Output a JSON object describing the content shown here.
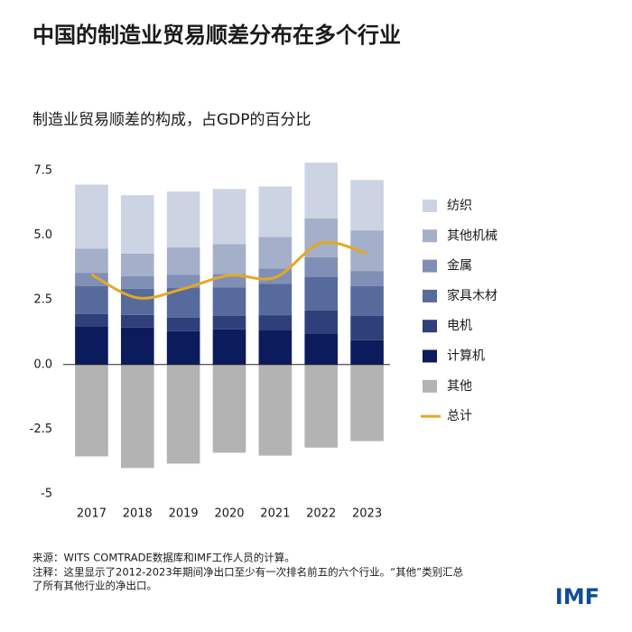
{
  "chart_data": {
    "type": "bar",
    "title": "中国的制造业贸易顺差分布在多个行业",
    "subtitle": "制造业贸易顺差的构成，占GDP的百分比",
    "categories": [
      "2017",
      "2018",
      "2019",
      "2020",
      "2021",
      "2022",
      "2023"
    ],
    "series": [
      {
        "name": "纺织",
        "color": "#ccd3e2",
        "values": [
          2.47,
          2.26,
          2.16,
          2.13,
          1.95,
          2.16,
          1.95
        ]
      },
      {
        "name": "其他机械",
        "color": "#a4afc9",
        "values": [
          0.94,
          0.87,
          1.05,
          1.15,
          1.22,
          1.5,
          1.57
        ]
      },
      {
        "name": "金属",
        "color": "#7f8fb5",
        "values": [
          0.52,
          0.49,
          0.52,
          0.52,
          0.59,
          0.77,
          0.59
        ]
      },
      {
        "name": "家具木材",
        "color": "#566a9c",
        "values": [
          1.08,
          1.01,
          1.15,
          1.11,
          1.22,
          1.29,
          1.15
        ]
      },
      {
        "name": "电机",
        "color": "#2e3f7a",
        "values": [
          0.49,
          0.49,
          0.52,
          0.52,
          0.59,
          0.91,
          0.94
        ]
      },
      {
        "name": "计算机",
        "color": "#0c1b5c",
        "values": [
          1.46,
          1.43,
          1.29,
          1.36,
          1.32,
          1.18,
          0.94
        ]
      },
      {
        "name": "其他",
        "color": "#b3b3b3",
        "values": [
          -3.55,
          -4.0,
          -3.83,
          -3.41,
          -3.52,
          -3.21,
          -2.96
        ]
      },
      {
        "name": "总计",
        "color": "#e5a823",
        "type": "line",
        "values": [
          3.48,
          2.58,
          2.93,
          3.45,
          3.37,
          4.7,
          4.29
        ]
      }
    ],
    "ylim": [
      -5,
      7.5
    ],
    "yticks": [
      -5,
      -2.5,
      {
        "value": 0,
        "label": "0.0"
      },
      2.5,
      {
        "value": 5,
        "label": "5.0"
      },
      7.5
    ],
    "grid": false,
    "legend": "right",
    "source": "来源：WITS COMTRADE数据库和IMF工作人员的计算。",
    "note_lines": [
      "注释：这里显示了2012-2023年期间净出口至少有一次排名前五的六个行业。“其他”类别汇总",
      "了所有其他行业的净出口。"
    ],
    "logo": "IMF"
  }
}
